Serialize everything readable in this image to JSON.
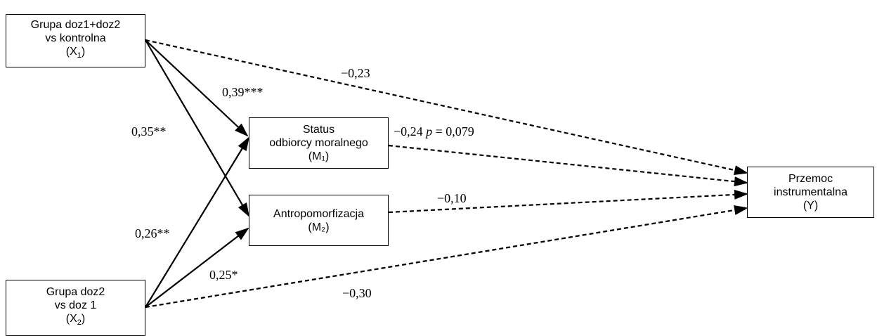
{
  "nodes": {
    "x1": {
      "line1": "Grupa doz1+doz2",
      "line2": "vs kontrolna",
      "line3": "(X",
      "sub": "1",
      "line3_end": ")"
    },
    "x2": {
      "line1": "Grupa doz2",
      "line2": "vs doz 1",
      "line3": "(X",
      "sub": "2",
      "line3_end": ")"
    },
    "m1": {
      "line1": "Status",
      "line2": "odbiorcy moralnego",
      "line3": "(M₁)"
    },
    "m2": {
      "line1": "Antropomorfizacja",
      "line2": "(M₂)"
    },
    "y": {
      "line1": "Przemoc",
      "line2": "instrumentalna",
      "line3": "(Y)"
    }
  },
  "paths": {
    "x1_y": "−0,23",
    "x1_m1": "0,39***",
    "x1_m2": "0,35**",
    "m1_y_coef": "−0,24",
    "m1_y_p": "p",
    "m1_y_rest": " = 0,079",
    "x2_m1": "0,26**",
    "x2_m2": "0,25*",
    "m2_y": "−0,10",
    "x2_y": "−0,30"
  },
  "colors": {
    "line": "#000000"
  }
}
